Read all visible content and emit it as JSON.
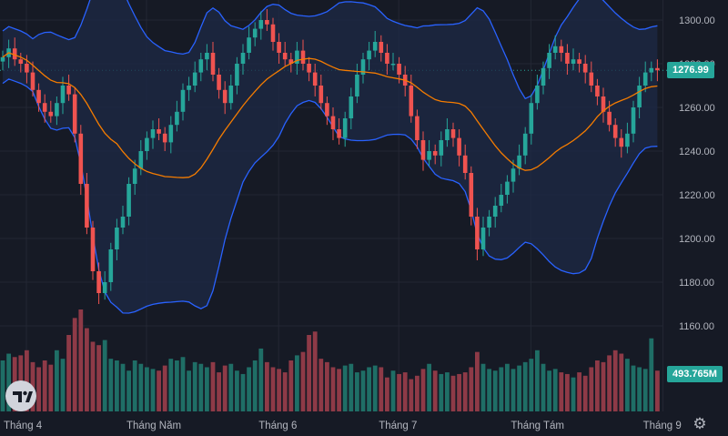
{
  "chart_data": {
    "type": "candlestick",
    "interval": "daily",
    "price_axis": {
      "ticks": [
        "1300.00",
        "1280.00",
        "1260.00",
        "1240.00",
        "1220.00",
        "1200.00",
        "1180.00",
        "1160.00"
      ],
      "tick_values": [
        1300,
        1280,
        1260,
        1240,
        1220,
        1200,
        1180,
        1160
      ],
      "range": [
        1148,
        1305
      ]
    },
    "time_axis": {
      "labels": [
        "Tháng 4",
        "Tháng Năm",
        "Tháng 6",
        "Tháng 7",
        "Tháng Tám",
        "Tháng 9"
      ],
      "label_bar_index": [
        0,
        20,
        42,
        62,
        84,
        106
      ]
    },
    "last_price": "1276.99",
    "last_volume": "493.765M",
    "colors": {
      "up": "#26a69a",
      "down": "#ef5350",
      "volume_up": "#1f6e66",
      "volume_down": "#8e3a47",
      "bollinger_band": "#2962ff",
      "moving_average": "#f57c00",
      "band_fill": "#1e2a45",
      "background": "#161a25",
      "grid": "#232734",
      "axis_text": "#b2b5be"
    },
    "indicators": [
      "Bollinger Bands",
      "Moving Average",
      "Volume"
    ],
    "close": [
      1283,
      1287,
      1282,
      1280,
      1276,
      1268,
      1262,
      1258,
      1256,
      1262,
      1270,
      1266,
      1248,
      1225,
      1205,
      1185,
      1175,
      1180,
      1195,
      1205,
      1210,
      1225,
      1232,
      1240,
      1246,
      1250,
      1248,
      1244,
      1252,
      1258,
      1268,
      1270,
      1276,
      1282,
      1285,
      1275,
      1268,
      1262,
      1270,
      1280,
      1285,
      1292,
      1296,
      1300,
      1298,
      1290,
      1285,
      1282,
      1280,
      1286,
      1280,
      1276,
      1270,
      1262,
      1256,
      1250,
      1246,
      1255,
      1265,
      1275,
      1282,
      1286,
      1290,
      1285,
      1280,
      1280,
      1275,
      1270,
      1256,
      1245,
      1236,
      1240,
      1238,
      1245,
      1250,
      1246,
      1238,
      1230,
      1210,
      1195,
      1205,
      1210,
      1215,
      1220,
      1226,
      1232,
      1238,
      1248,
      1262,
      1270,
      1278,
      1285,
      1288,
      1285,
      1280,
      1282,
      1280,
      1276,
      1270,
      1265,
      1258,
      1252,
      1246,
      1242,
      1248,
      1260,
      1270,
      1276,
      1278,
      1277
    ],
    "volume": [
      60,
      68,
      64,
      66,
      72,
      58,
      52,
      60,
      55,
      72,
      62,
      90,
      110,
      120,
      98,
      82,
      78,
      84,
      62,
      60,
      56,
      48,
      60,
      56,
      52,
      50,
      48,
      54,
      62,
      60,
      64,
      48,
      58,
      56,
      52,
      58,
      46,
      54,
      56,
      48,
      44,
      52,
      60,
      74,
      58,
      52,
      50,
      46,
      60,
      66,
      70,
      90,
      94,
      62,
      58,
      52,
      50,
      54,
      56,
      46,
      48,
      52,
      54,
      52,
      40,
      48,
      44,
      46,
      38,
      42,
      50,
      56,
      48,
      44,
      46,
      42,
      44,
      46,
      52,
      70,
      56,
      50,
      48,
      52,
      56,
      50,
      54,
      58,
      62,
      72,
      56,
      48,
      50,
      46,
      44,
      40,
      46,
      42,
      52,
      60,
      58,
      66,
      72,
      68,
      62,
      54,
      52,
      50,
      86,
      48
    ],
    "volume_scale_max": 120
  }
}
